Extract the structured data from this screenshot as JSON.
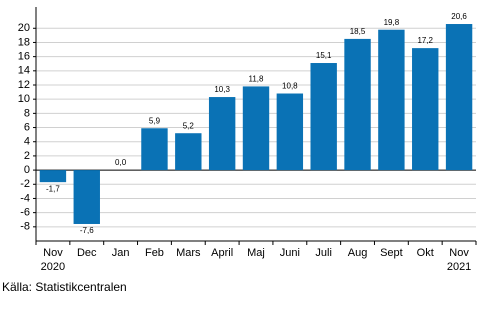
{
  "chart_data": {
    "type": "bar",
    "categories": [
      "Nov",
      "Dec",
      "Jan",
      "Feb",
      "Mars",
      "April",
      "Maj",
      "Juni",
      "Juli",
      "Aug",
      "Sept",
      "Okt",
      "Nov"
    ],
    "category_years": [
      "2020",
      null,
      null,
      null,
      null,
      null,
      null,
      null,
      null,
      null,
      null,
      null,
      "2021"
    ],
    "values": [
      -1.7,
      -7.6,
      0.0,
      5.9,
      5.2,
      10.3,
      11.8,
      10.8,
      15.1,
      18.5,
      19.8,
      17.2,
      20.6
    ],
    "value_labels": [
      "-1,7",
      "-7,6",
      "0,0",
      "5,9",
      "5,2",
      "10,3",
      "11,8",
      "10,8",
      "15,1",
      "18,5",
      "19,8",
      "17,2",
      "20,6"
    ],
    "color": "#0a72b5",
    "ylim": [
      -10,
      23
    ],
    "yticks": [
      -8,
      -6,
      -4,
      -2,
      0,
      2,
      4,
      6,
      8,
      10,
      12,
      14,
      16,
      18,
      20
    ],
    "grid": true,
    "source": "Källa: Statistikcentralen"
  }
}
